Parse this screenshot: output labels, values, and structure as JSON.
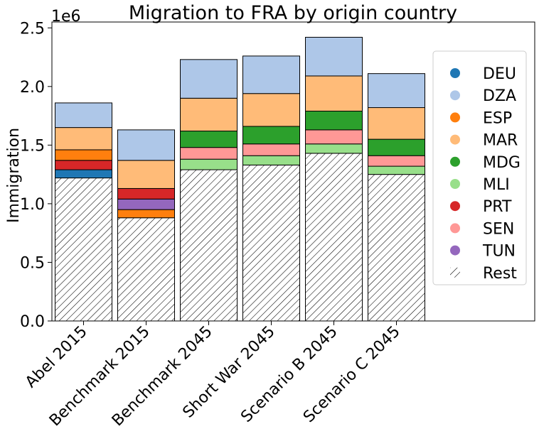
{
  "chart_data": {
    "type": "bar",
    "stacked": true,
    "title": "Migration to FRA by origin country",
    "ylabel": "Immigration",
    "xlabel": "",
    "y_multiplier": "1e6",
    "ylim": [
      0,
      2.55
    ],
    "yticks": [
      "0.0",
      "0.5",
      "1.0",
      "1.5",
      "2.0",
      "2.5"
    ],
    "ytick_values": [
      0,
      0.5,
      1.0,
      1.5,
      2.0,
      2.5
    ],
    "categories": [
      "Abel 2015",
      "Benchmark 2015",
      "Benchmark 2045",
      "Short War 2045",
      "Scenario B 2045",
      "Scenario C 2045"
    ],
    "series": [
      {
        "name": "Rest",
        "color": "#ffffff",
        "pattern": "hatch",
        "values": [
          1.22,
          0.88,
          1.29,
          1.33,
          1.43,
          1.25
        ]
      },
      {
        "name": "DEU",
        "color": "#1f77b4",
        "values": [
          0.07,
          0,
          0,
          0,
          0,
          0
        ]
      },
      {
        "name": "MLI",
        "color": "#98df8a",
        "values": [
          0,
          0,
          0.09,
          0.08,
          0.08,
          0.07
        ]
      },
      {
        "name": "ESP",
        "color": "#ff7f0e",
        "values": [
          0,
          0.07,
          0,
          0,
          0,
          0
        ]
      },
      {
        "name": "TUN",
        "color": "#9467bd",
        "values": [
          0,
          0.09,
          0,
          0,
          0,
          0
        ]
      },
      {
        "name": "PRT",
        "color": "#d62728",
        "values": [
          0.08,
          0.09,
          0,
          0,
          0,
          0
        ]
      },
      {
        "name": "ESP",
        "color": "#ff7f0e",
        "values": [
          0.09,
          0,
          0,
          0,
          0,
          0
        ]
      },
      {
        "name": "SEN",
        "color": "#ff9896",
        "values": [
          0,
          0,
          0.1,
          0.1,
          0.12,
          0.09
        ]
      },
      {
        "name": "MDG",
        "color": "#2ca02c",
        "values": [
          0,
          0,
          0.14,
          0.15,
          0.16,
          0.14
        ]
      },
      {
        "name": "MAR",
        "color": "#ffbb78",
        "values": [
          0.19,
          0.24,
          0.28,
          0.28,
          0.3,
          0.27
        ]
      },
      {
        "name": "DZA",
        "color": "#aec7e8",
        "values": [
          0.21,
          0.26,
          0.33,
          0.32,
          0.33,
          0.29
        ]
      }
    ],
    "legend": {
      "placement": "right",
      "entries": [
        {
          "label": "DEU",
          "color": "#1f77b4",
          "marker": "circle"
        },
        {
          "label": "DZA",
          "color": "#aec7e8",
          "marker": "circle"
        },
        {
          "label": "ESP",
          "color": "#ff7f0e",
          "marker": "circle"
        },
        {
          "label": "MAR",
          "color": "#ffbb78",
          "marker": "circle"
        },
        {
          "label": "MDG",
          "color": "#2ca02c",
          "marker": "circle"
        },
        {
          "label": "MLI",
          "color": "#98df8a",
          "marker": "circle"
        },
        {
          "label": "PRT",
          "color": "#d62728",
          "marker": "circle"
        },
        {
          "label": "SEN",
          "color": "#ff9896",
          "marker": "circle"
        },
        {
          "label": "TUN",
          "color": "#9467bd",
          "marker": "circle"
        },
        {
          "label": "Rest",
          "color": "#ffffff",
          "marker": "hatch"
        }
      ]
    },
    "grid": false
  }
}
